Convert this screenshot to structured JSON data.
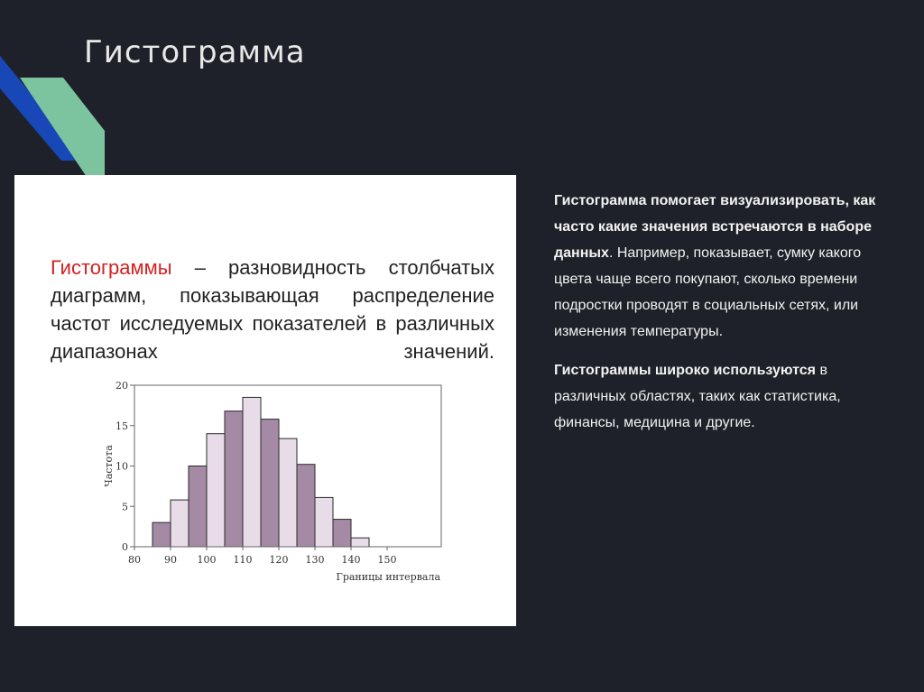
{
  "slide": {
    "title": "Гистограмма"
  },
  "definition": {
    "term": "Гистограммы",
    "text": " – разновидность столбчатых диаграмм, показывающая распределение частот исследуемых показателей в различных диапазонах значений."
  },
  "description": {
    "p1_bold": "Гистограмма помогает визуализировать, как часто какие значения встречаются в наборе данных",
    "p1_rest": ". Например, показывает, сумку какого цвета чаще всего покупают, сколько времени подростки проводят в социальных сетях, или изменения температуры.",
    "p2_bold": "Гистограммы широко используются",
    "p2_rest": " в различных областях, таких как статистика, финансы, медицина и другие."
  },
  "colors": {
    "background": "#1e2129",
    "accent_blue": "#1848b8",
    "accent_green": "#7cc4a0",
    "bar_dark": "#a48aa4",
    "bar_light": "#e8dce8",
    "definition_term": "#d42020"
  },
  "chart_data": {
    "type": "bar",
    "xlabel": "Границы интервала",
    "ylabel": "Частота",
    "ylim": [
      0,
      20
    ],
    "xlim": [
      80,
      165
    ],
    "y_ticks": [
      "0",
      "5",
      "10",
      "15",
      "20"
    ],
    "x_ticks": [
      "80",
      "90",
      "100",
      "110",
      "120",
      "130",
      "140",
      "150"
    ],
    "bin_width": 5,
    "bins": [
      {
        "start": 85,
        "value": 3
      },
      {
        "start": 90,
        "value": 5.8
      },
      {
        "start": 95,
        "value": 10
      },
      {
        "start": 100,
        "value": 14
      },
      {
        "start": 105,
        "value": 16.8
      },
      {
        "start": 110,
        "value": 18.5
      },
      {
        "start": 115,
        "value": 15.8
      },
      {
        "start": 120,
        "value": 13.4
      },
      {
        "start": 125,
        "value": 10.2
      },
      {
        "start": 130,
        "value": 6.1
      },
      {
        "start": 135,
        "value": 3.4
      },
      {
        "start": 140,
        "value": 1.1
      }
    ]
  }
}
